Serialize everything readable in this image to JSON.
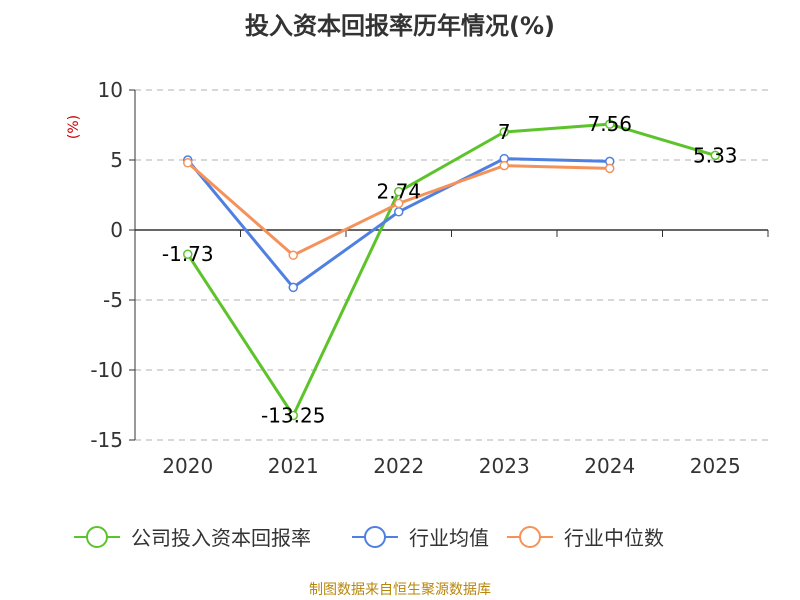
{
  "chart_data": {
    "type": "line",
    "title": "投入资本回报率历年情况(%)",
    "ylabel": "(%)",
    "ylim": [
      -15,
      10
    ],
    "yticks": [
      10,
      5,
      0,
      -5,
      -10,
      -15
    ],
    "categories": [
      "2020",
      "2021",
      "2022",
      "2023",
      "2024",
      "2025"
    ],
    "grid": "horizontal-dashed",
    "legend": "bottom",
    "series": [
      {
        "name": "公司投入资本回报率",
        "color": "#5cc42a",
        "values": [
          -1.73,
          -13.25,
          2.74,
          7,
          7.56,
          5.33
        ],
        "labels": [
          "-1.73",
          "-13.25",
          "2.74",
          "7",
          "7.56",
          "5.33"
        ]
      },
      {
        "name": "行业均值",
        "color": "#4f7fe0",
        "values": [
          5.0,
          -4.1,
          1.3,
          5.1,
          4.9,
          null
        ],
        "labels": []
      },
      {
        "name": "行业中位数",
        "color": "#f4925a",
        "values": [
          4.8,
          -1.8,
          1.9,
          4.6,
          4.4,
          null
        ],
        "labels": []
      }
    ]
  },
  "source": "制图数据来自恒生聚源数据库"
}
